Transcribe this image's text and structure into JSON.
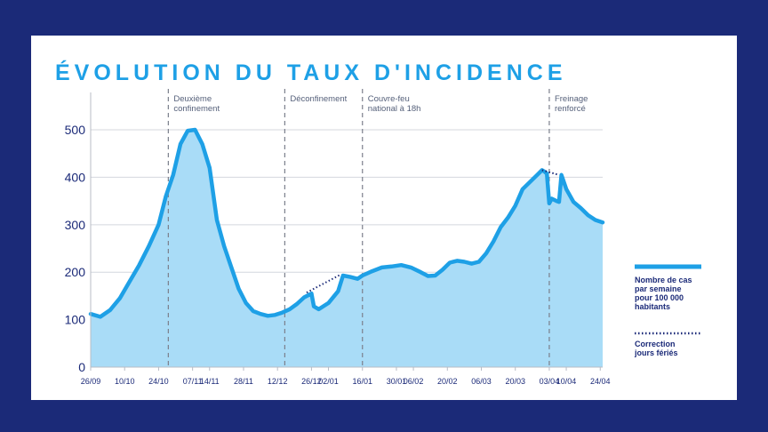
{
  "colors": {
    "background": "#1b2a78",
    "card": "#ffffff",
    "line": "#1ea0e6",
    "fill": "#a9dcf7",
    "text": "#1b2a78",
    "dotted": "#1b2a78"
  },
  "chart_data": {
    "type": "area",
    "title": "ÉVOLUTION DU TAUX D'INCIDENCE",
    "xlabel": "",
    "ylabel": "",
    "ylim": [
      0,
      560
    ],
    "yticks": [
      0,
      100,
      200,
      300,
      400,
      500
    ],
    "x_tick_labels": [
      "26/09",
      "10/10",
      "24/10",
      "07/11",
      "14/11",
      "28/11",
      "12/12",
      "26/12",
      "02/01",
      "16/01",
      "30/01",
      "06/02",
      "20/02",
      "06/03",
      "20/03",
      "03/04",
      "10/04",
      "24/04"
    ],
    "grid": true,
    "legend_position": "right",
    "annotations": [
      {
        "at": "28/10",
        "text": [
          "Deuxième",
          "confinement"
        ]
      },
      {
        "at": "15/12",
        "text": [
          "Déconfinement"
        ]
      },
      {
        "at": "16/01",
        "text": [
          "Couvre-feu",
          "national à 18h"
        ]
      },
      {
        "at": "03/04",
        "text": [
          "Freinage",
          "renforcé"
        ]
      }
    ],
    "series": [
      {
        "name": "Nombre de cas par semaine pour 100 000 habitants",
        "style": "solid",
        "points": [
          [
            "26/09",
            112
          ],
          [
            "30/09",
            106
          ],
          [
            "04/10",
            120
          ],
          [
            "08/10",
            145
          ],
          [
            "12/10",
            180
          ],
          [
            "16/10",
            215
          ],
          [
            "20/10",
            255
          ],
          [
            "24/10",
            300
          ],
          [
            "27/10",
            360
          ],
          [
            "30/10",
            405
          ],
          [
            "02/11",
            470
          ],
          [
            "05/11",
            498
          ],
          [
            "08/11",
            500
          ],
          [
            "11/11",
            470
          ],
          [
            "14/11",
            420
          ],
          [
            "17/11",
            310
          ],
          [
            "20/11",
            255
          ],
          [
            "23/11",
            210
          ],
          [
            "26/11",
            165
          ],
          [
            "29/11",
            135
          ],
          [
            "02/12",
            118
          ],
          [
            "05/12",
            112
          ],
          [
            "08/12",
            108
          ],
          [
            "11/12",
            110
          ],
          [
            "14/12",
            115
          ],
          [
            "17/12",
            122
          ],
          [
            "20/12",
            133
          ],
          [
            "23/12",
            147
          ],
          [
            "26/12",
            155
          ],
          [
            "27/12",
            128
          ],
          [
            "29/12",
            122
          ],
          [
            "02/01",
            135
          ],
          [
            "06/01",
            160
          ],
          [
            "08/01",
            193
          ],
          [
            "11/01",
            190
          ],
          [
            "14/01",
            186
          ],
          [
            "16/01",
            193
          ],
          [
            "20/01",
            202
          ],
          [
            "24/01",
            210
          ],
          [
            "28/01",
            212
          ],
          [
            "01/02",
            215
          ],
          [
            "05/02",
            210
          ],
          [
            "09/02",
            200
          ],
          [
            "12/02",
            192
          ],
          [
            "15/02",
            193
          ],
          [
            "18/02",
            205
          ],
          [
            "21/02",
            220
          ],
          [
            "24/02",
            224
          ],
          [
            "27/02",
            222
          ],
          [
            "02/03",
            218
          ],
          [
            "05/03",
            222
          ],
          [
            "08/03",
            240
          ],
          [
            "11/03",
            265
          ],
          [
            "14/03",
            295
          ],
          [
            "17/03",
            315
          ],
          [
            "20/03",
            340
          ],
          [
            "23/03",
            375
          ],
          [
            "26/03",
            390
          ],
          [
            "29/03",
            405
          ],
          [
            "31/03",
            415
          ],
          [
            "01/04",
            412
          ],
          [
            "02/04",
            408
          ],
          [
            "03/04",
            345
          ],
          [
            "04/04",
            355
          ],
          [
            "06/04",
            350
          ],
          [
            "07/04",
            348
          ],
          [
            "08/04",
            405
          ],
          [
            "10/04",
            375
          ],
          [
            "13/04",
            348
          ],
          [
            "16/04",
            335
          ],
          [
            "19/04",
            320
          ],
          [
            "22/04",
            310
          ],
          [
            "25/04",
            305
          ]
        ]
      },
      {
        "name": "Correction jours fériés",
        "style": "dotted",
        "points": [
          [
            "24/12",
            157
          ],
          [
            "07/01",
            195
          ]
        ]
      },
      {
        "name": "Correction jours fériés",
        "style": "dotted",
        "points": [
          [
            "31/03",
            415
          ],
          [
            "07/04",
            405
          ]
        ]
      }
    ]
  },
  "legend": {
    "items": [
      {
        "style": "solid",
        "label": [
          "Nombre de cas",
          "par semaine",
          "pour 100 000",
          "habitants"
        ]
      },
      {
        "style": "dotted",
        "label": [
          "Correction",
          "jours fériés"
        ]
      }
    ]
  }
}
